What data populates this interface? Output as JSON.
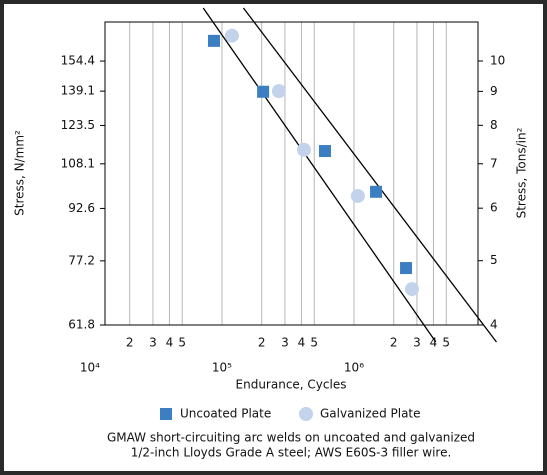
{
  "chart_data": {
    "type": "scatter",
    "y_label": "Stress, N/mm²",
    "y2_label": "Stress, Tons/in²",
    "x_label": "Endurance, Cycles",
    "caption": [
      "GMAW short-circuiting arc welds on uncoated and galvanized",
      "1/2-inch Lloyds Grade A steel; AWS E60S-3 filler wire."
    ],
    "xscale": "log",
    "yscale": "log",
    "grid": true,
    "legend": "bottom",
    "xlim": [
      13000,
      8700000
    ],
    "ylim": [
      61.8,
      176.8
    ],
    "y2lim": [
      4,
      11.45
    ],
    "xticks": [
      {
        "value": 10000,
        "label": "10⁴"
      },
      {
        "value": 20000,
        "label": "2"
      },
      {
        "value": 30000,
        "label": "3"
      },
      {
        "value": 40000,
        "label": "4"
      },
      {
        "value": 50000,
        "label": "5"
      },
      {
        "value": 100000,
        "label": "10⁵"
      },
      {
        "value": 200000,
        "label": "2"
      },
      {
        "value": 300000,
        "label": "3"
      },
      {
        "value": 400000,
        "label": "4"
      },
      {
        "value": 500000,
        "label": "5"
      },
      {
        "value": 1000000,
        "label": "10⁶"
      },
      {
        "value": 2000000,
        "label": "2"
      },
      {
        "value": 3000000,
        "label": "3"
      },
      {
        "value": 4000000,
        "label": "4"
      },
      {
        "value": 5000000,
        "label": "5"
      }
    ],
    "yticks": [
      61.8,
      77.2,
      92.6,
      108.1,
      123.5,
      139.1,
      154.4
    ],
    "y2ticks": [
      4,
      5,
      6,
      7,
      8,
      9,
      10
    ],
    "series": [
      {
        "name": "Uncoated Plate",
        "color": "#3b7fc2",
        "marker": "square",
        "x": [
          87000,
          205000,
          603000,
          1470000,
          2480000
        ],
        "values": [
          165.6,
          138.8,
          113,
          98.1,
          75.3
        ]
      },
      {
        "name": "Galvanized Plate",
        "color": "#c3d3eb",
        "marker": "circle",
        "x": [
          119000,
          270000,
          418000,
          1070000,
          2750000
        ],
        "values": [
          168.6,
          139.1,
          113.5,
          96.7,
          70
        ]
      }
    ],
    "lines": [
      {
        "x": [
          85500,
          3390000
        ],
        "y": [
          176.8,
          61.8
        ]
      },
      {
        "x": [
          175000,
          8700000
        ],
        "y": [
          176.8,
          63.4
        ]
      }
    ]
  }
}
